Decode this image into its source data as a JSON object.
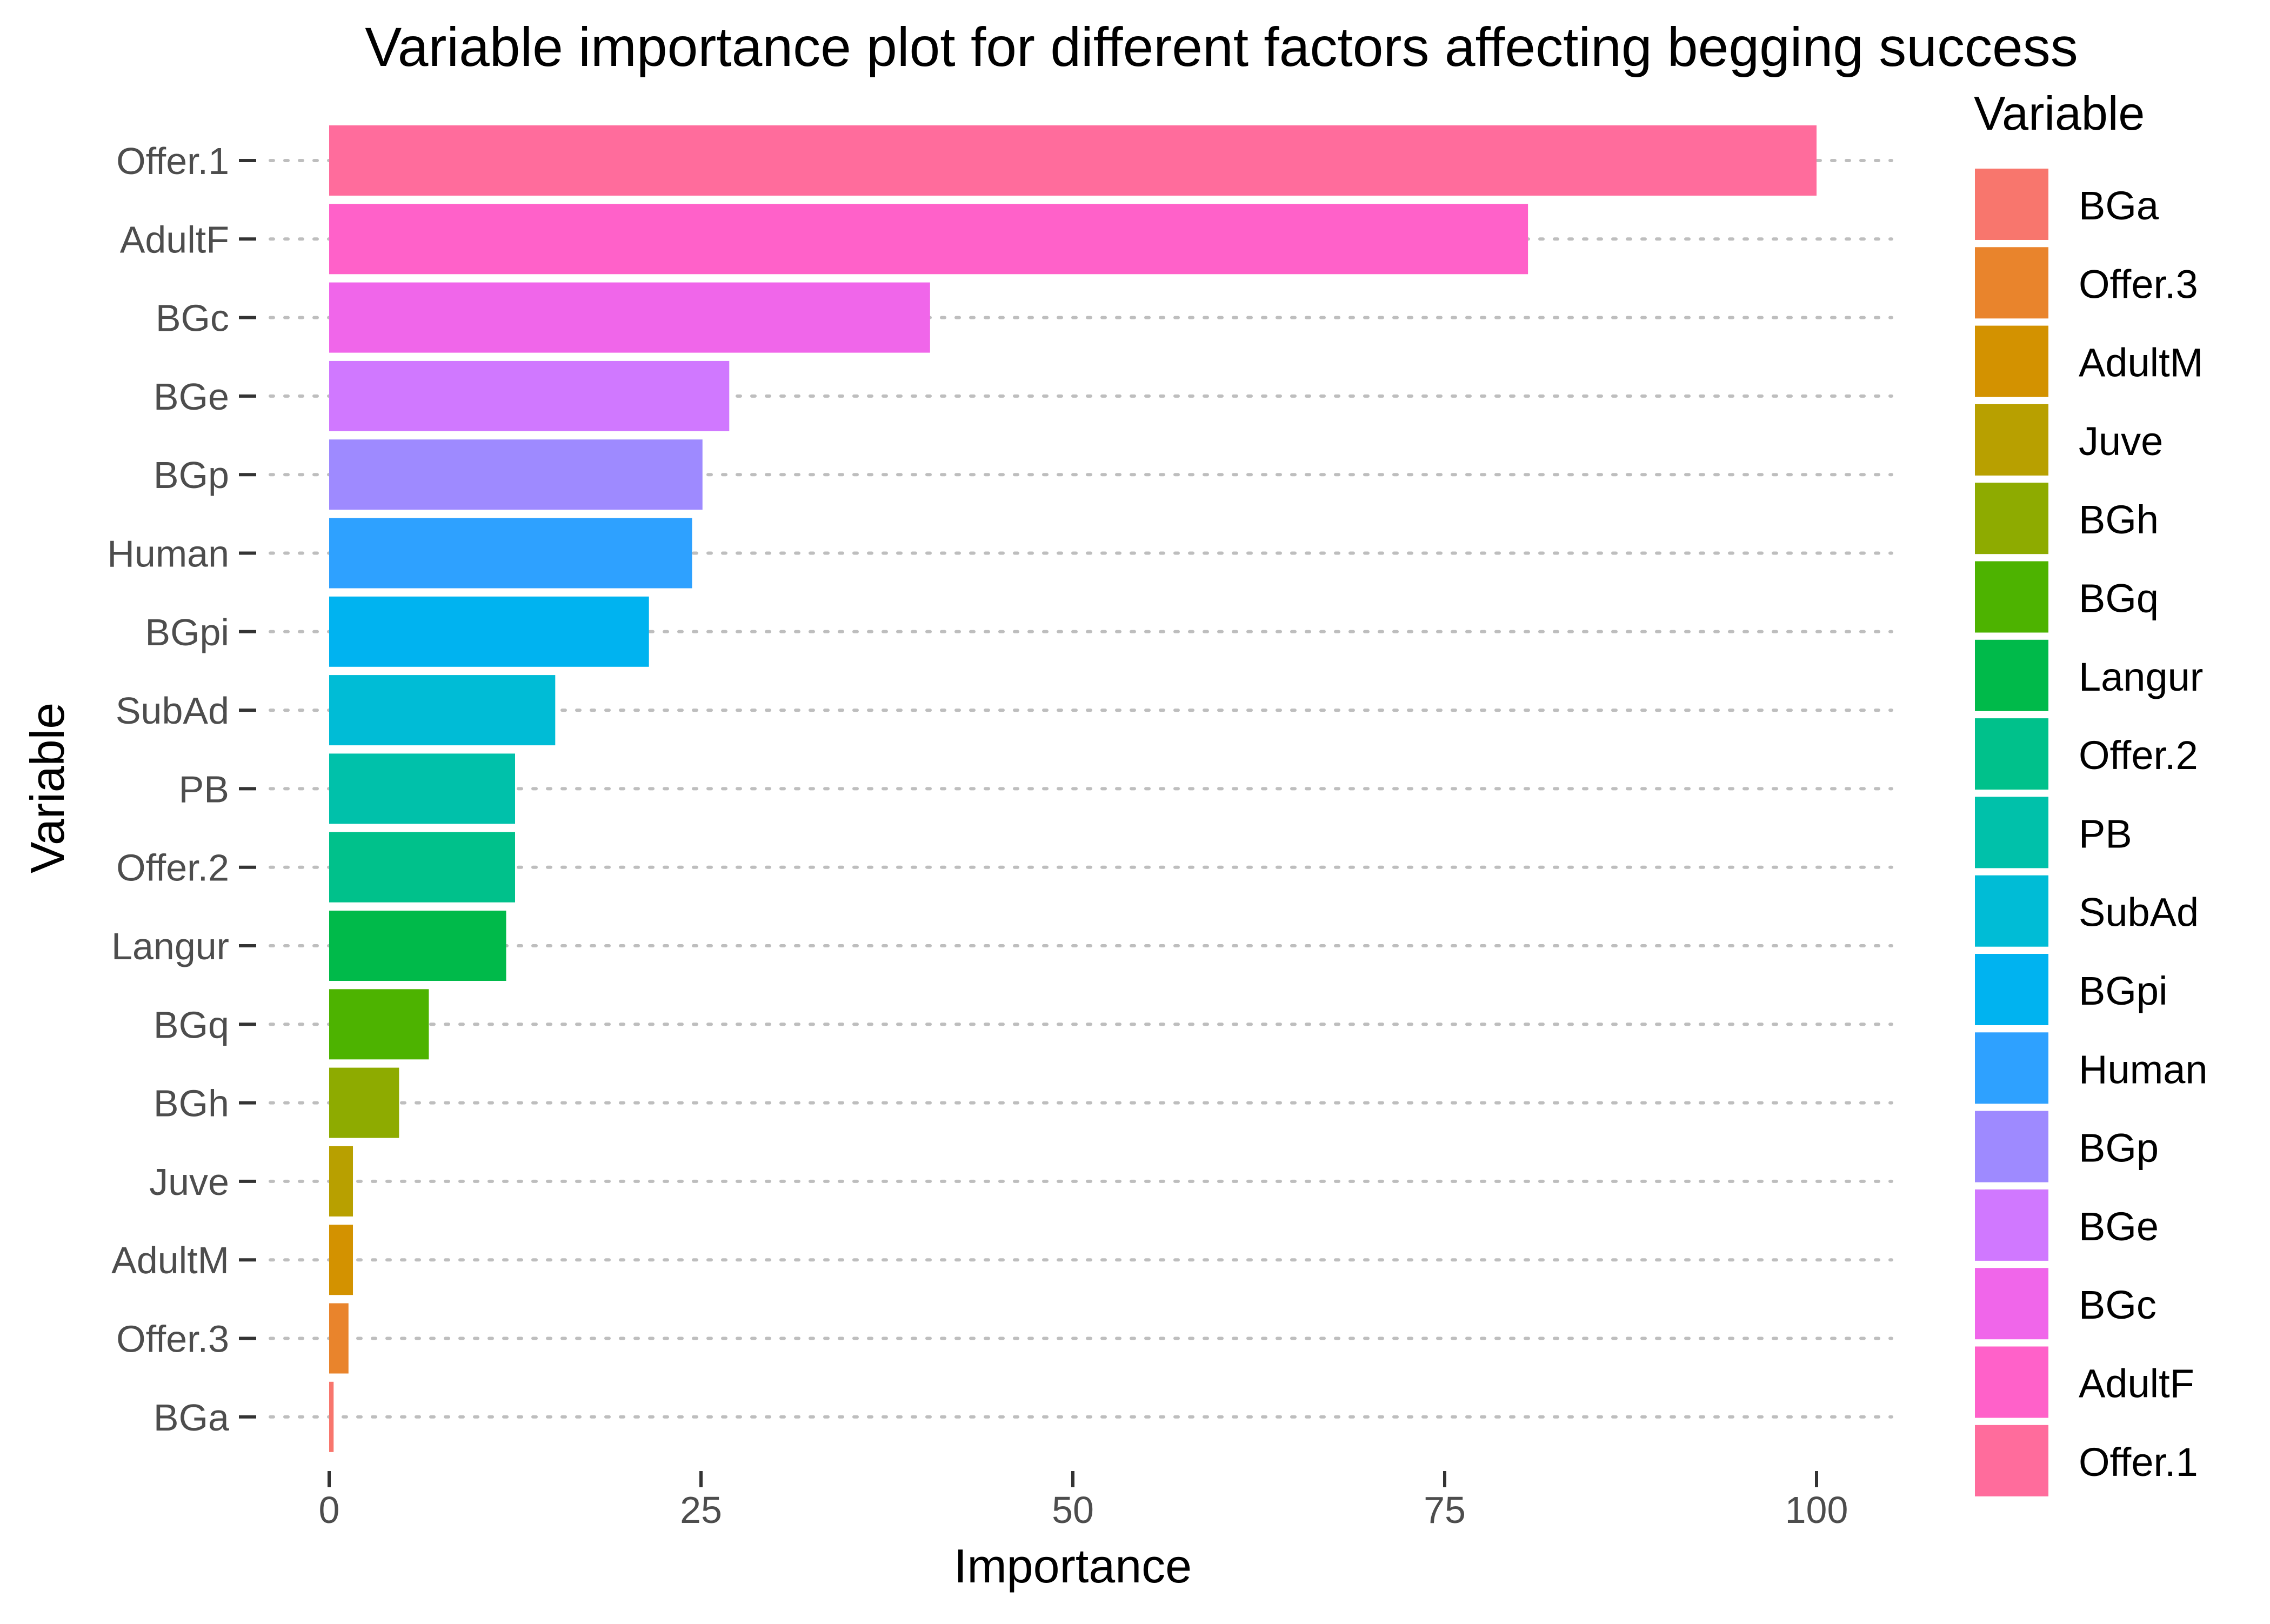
{
  "chart_data": {
    "type": "bar",
    "orientation": "horizontal",
    "title": "Variable importance plot for different factors affecting begging success",
    "xlabel": "Importance",
    "ylabel": "Variable",
    "xlim": [
      0,
      100
    ],
    "x_ticks": [
      0,
      25,
      50,
      75,
      100
    ],
    "x_tick_labels": [
      "0",
      "25",
      "50",
      "75",
      "100"
    ],
    "grid": "dotted horizontal lines",
    "legend": {
      "title": "Variable",
      "position": "right"
    },
    "categories": [
      "Offer.1",
      "AdultF",
      "BGc",
      "BGe",
      "BGp",
      "Human",
      "BGpi",
      "SubAd",
      "PB",
      "Offer.2",
      "Langur",
      "BGq",
      "BGh",
      "Juve",
      "AdultM",
      "Offer.3",
      "BGa"
    ],
    "values": [
      100,
      80.6,
      40.4,
      26.9,
      25.1,
      24.4,
      21.5,
      15.2,
      12.5,
      12.5,
      11.9,
      6.7,
      4.7,
      1.6,
      1.6,
      1.3,
      0.3
    ],
    "colors": [
      "#FF6C9C",
      "#FF61C9",
      "#F066EA",
      "#D078FF",
      "#9E8AFF",
      "#2EA1FF",
      "#00B3F0",
      "#00BCD6",
      "#00C1AA",
      "#00C18B",
      "#00BA4A",
      "#4DB300",
      "#8EAB00",
      "#B8A000",
      "#D39200",
      "#E9842C",
      "#F8766D"
    ],
    "legend_items": [
      {
        "label": "BGa",
        "color": "#F8766D"
      },
      {
        "label": "Offer.3",
        "color": "#E9842C"
      },
      {
        "label": "AdultM",
        "color": "#D39200"
      },
      {
        "label": "Juve",
        "color": "#B8A000"
      },
      {
        "label": "BGh",
        "color": "#8EAB00"
      },
      {
        "label": "BGq",
        "color": "#4DB300"
      },
      {
        "label": "Langur",
        "color": "#00BA4A"
      },
      {
        "label": "Offer.2",
        "color": "#00C18B"
      },
      {
        "label": "PB",
        "color": "#00C1AA"
      },
      {
        "label": "SubAd",
        "color": "#00BCD6"
      },
      {
        "label": "BGpi",
        "color": "#00B3F0"
      },
      {
        "label": "Human",
        "color": "#2EA1FF"
      },
      {
        "label": "BGp",
        "color": "#9E8AFF"
      },
      {
        "label": "BGe",
        "color": "#D078FF"
      },
      {
        "label": "BGc",
        "color": "#F066EA"
      },
      {
        "label": "AdultF",
        "color": "#FF61C9"
      },
      {
        "label": "Offer.1",
        "color": "#FF6C9C"
      }
    ]
  }
}
